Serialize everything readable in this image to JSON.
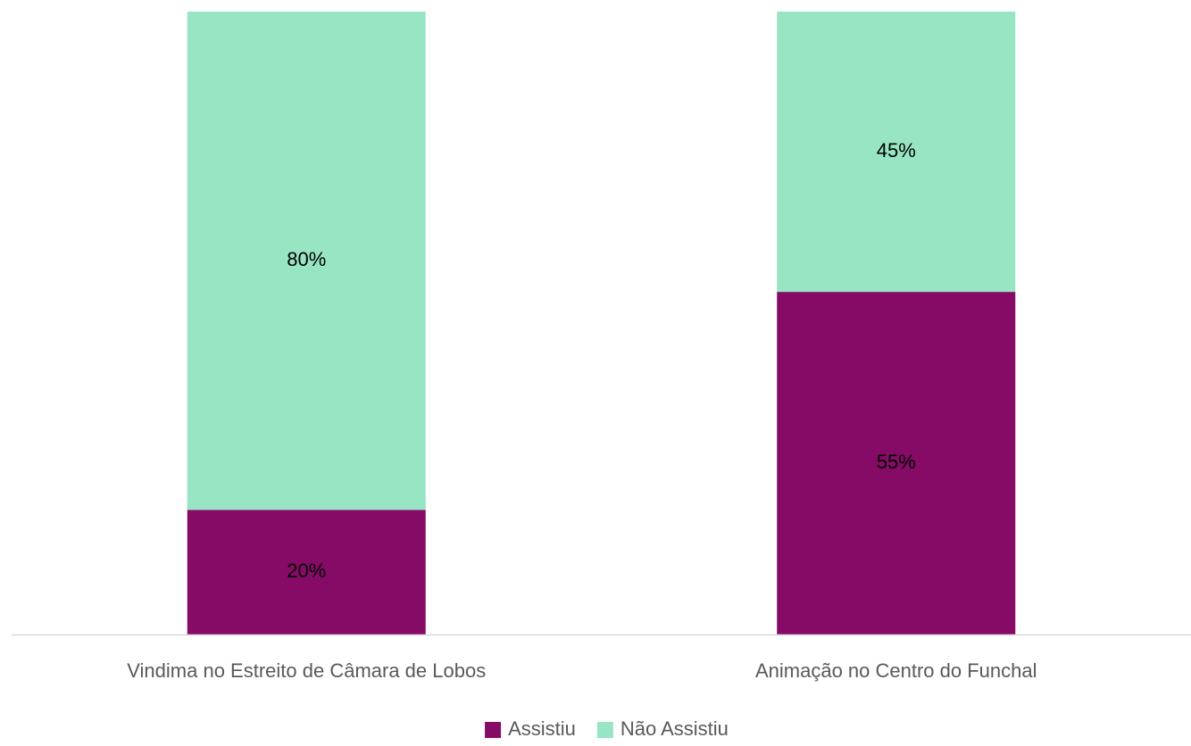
{
  "chart_data": {
    "type": "stacked_bar",
    "categories": [
      "Vindima no Estreito de Câmara de Lobos",
      "Animação no Centro do Funchal"
    ],
    "series": [
      {
        "name": "Assistiu",
        "color": "#860b66",
        "values": [
          20,
          55
        ],
        "value_labels": [
          "20%",
          "55%"
        ]
      },
      {
        "name": "Não Assistiu",
        "color": "#98e5c4",
        "values": [
          80,
          45
        ],
        "value_labels": [
          "80%",
          "45%"
        ]
      }
    ],
    "ylim": [
      0,
      100
    ],
    "legend": "bottom"
  }
}
